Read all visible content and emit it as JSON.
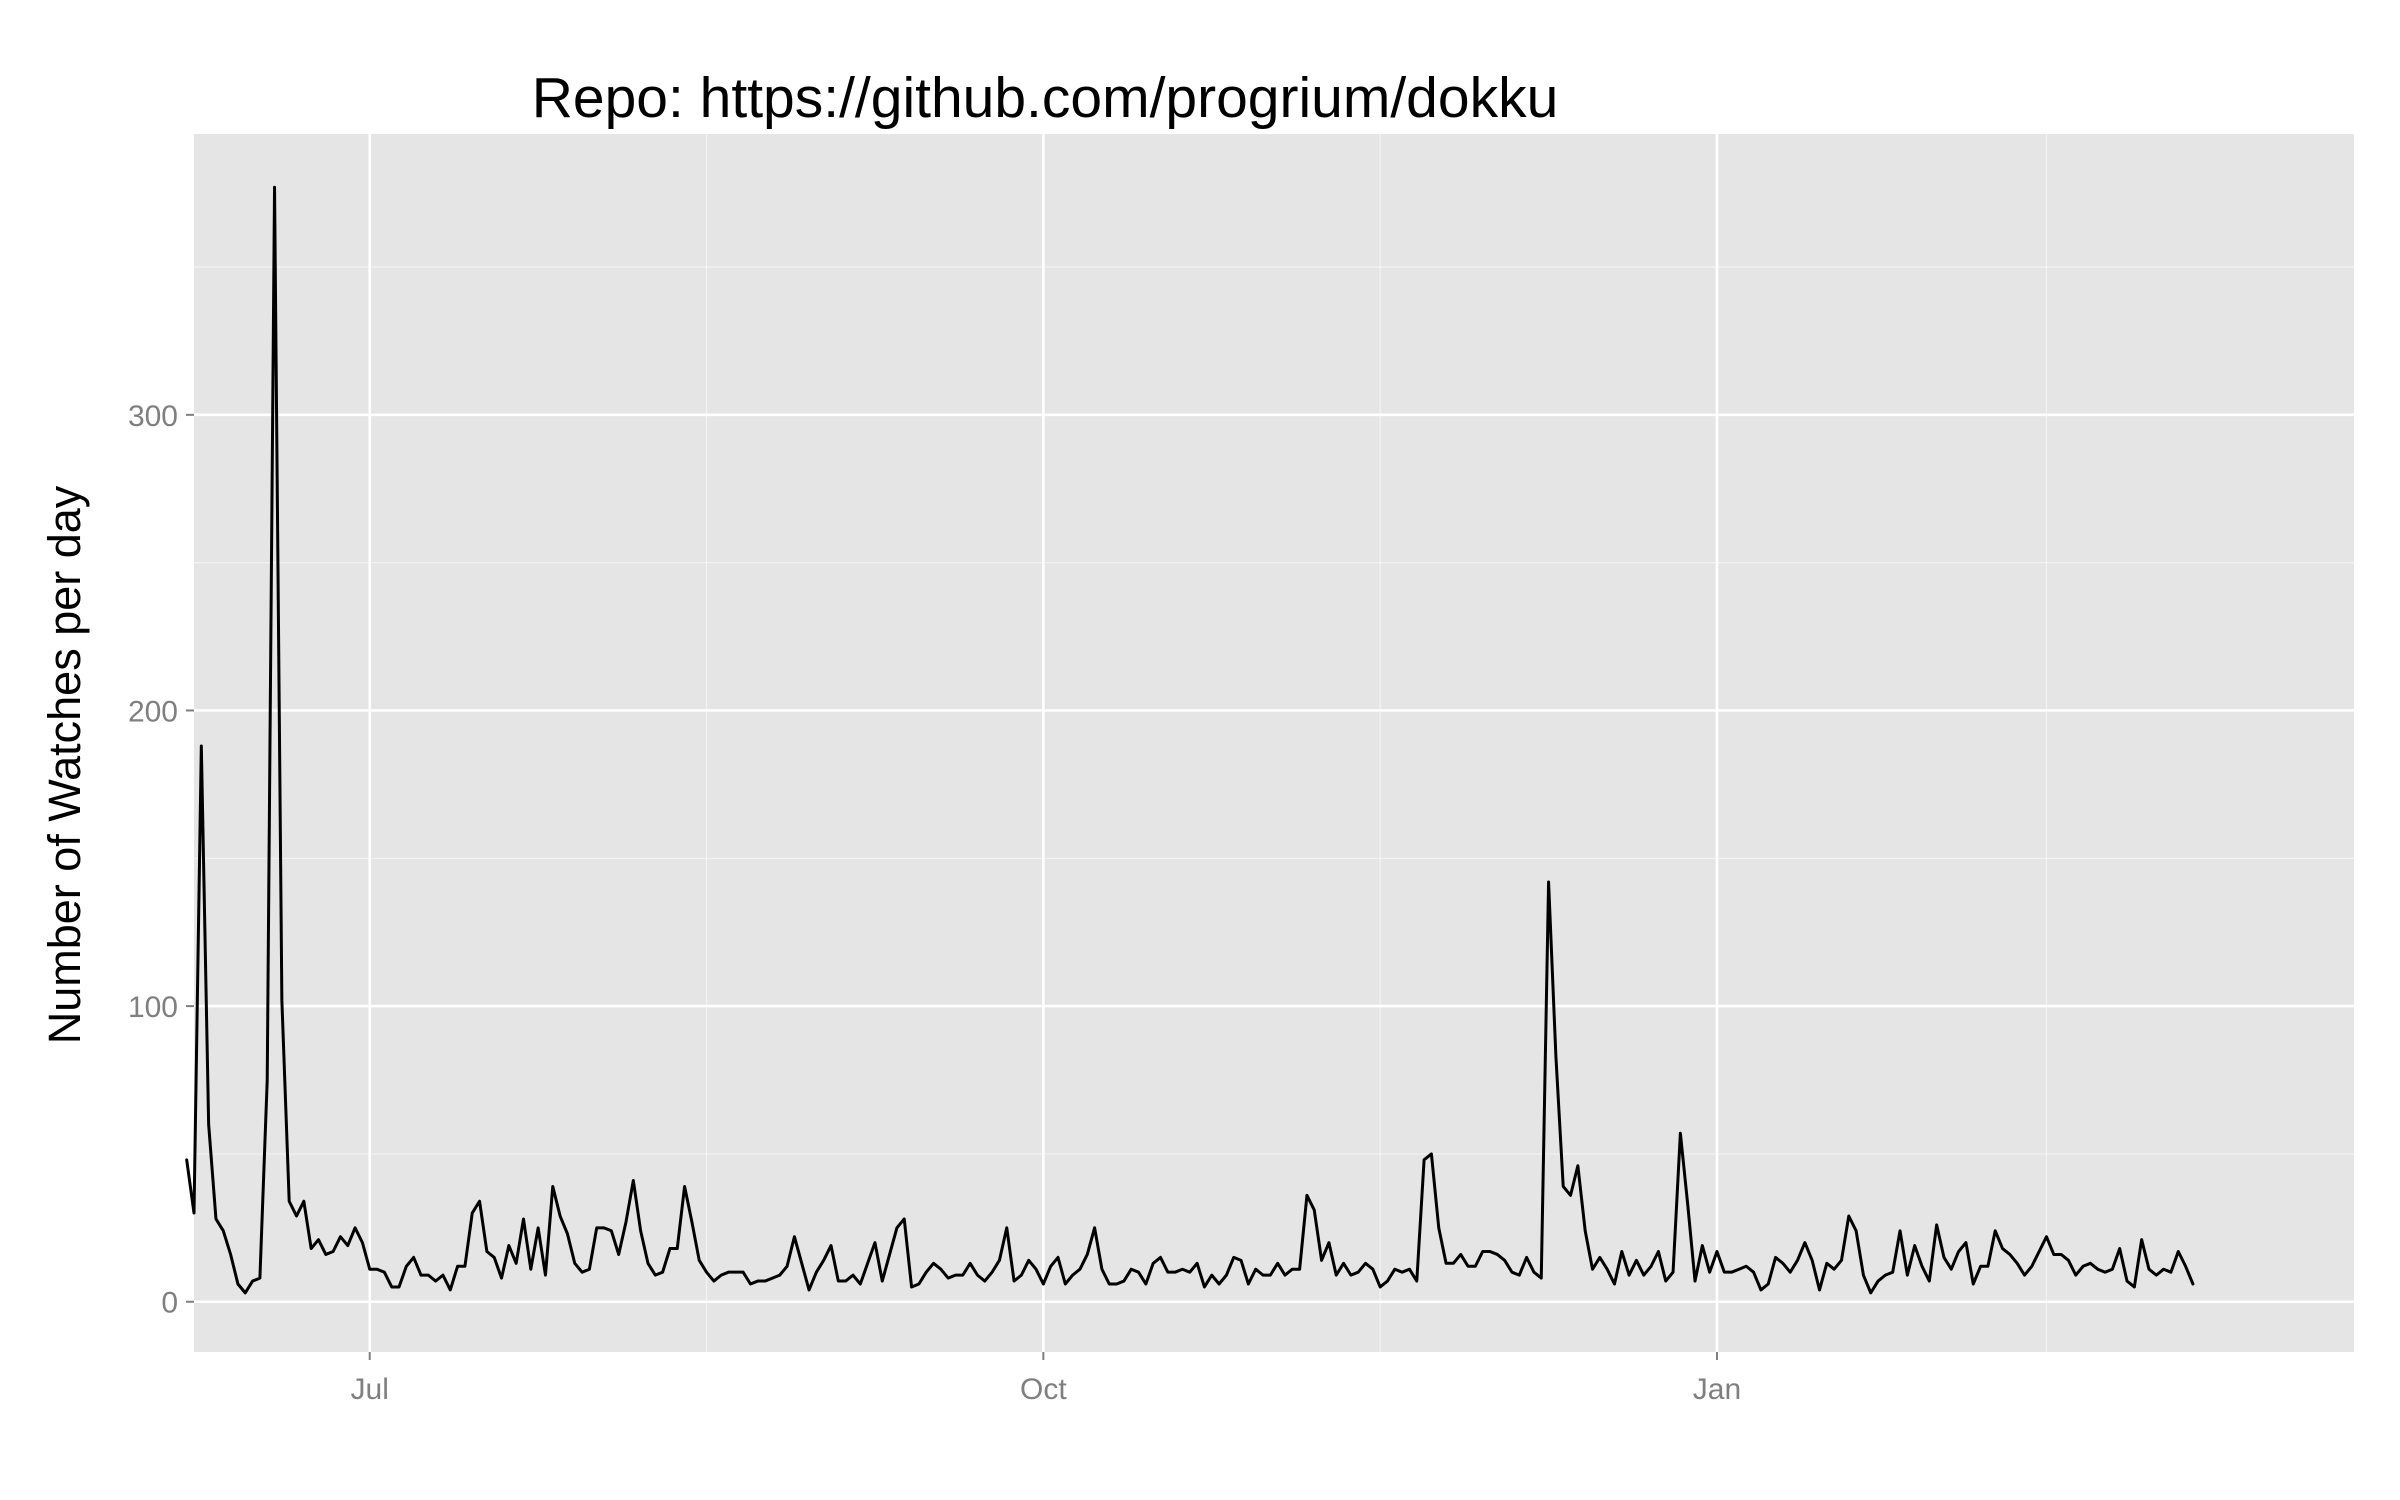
{
  "chart_data": {
    "type": "line",
    "title": "Repo: https://github.com/progrium/dokku",
    "xlabel": "",
    "ylabel": "Number of Watches per day",
    "xlim": [
      "2013-06-07",
      "2014-03-29"
    ],
    "ylim": [
      -17,
      395
    ],
    "x_major_ticks": [
      {
        "date": "2013-07-01",
        "label": "Jul"
      },
      {
        "date": "2013-10-01",
        "label": "Oct"
      },
      {
        "date": "2014-01-01",
        "label": "Jan"
      }
    ],
    "x_minor_ticks": [
      "2013-08-16",
      "2013-11-16",
      "2014-02-15"
    ],
    "y_major_ticks": [
      {
        "value": 0,
        "label": "0"
      },
      {
        "value": 100,
        "label": "100"
      },
      {
        "value": 200,
        "label": "200"
      },
      {
        "value": 300,
        "label": "300"
      }
    ],
    "y_minor_ticks": [
      50,
      150,
      250,
      350
    ],
    "grid": true,
    "background_color": "#e5e5e5",
    "grid_color": "#ffffff",
    "line_color": "#000000",
    "series": [
      {
        "start_date": "2013-06-06",
        "values": [
          48,
          30,
          188,
          60,
          28,
          24,
          16,
          6,
          3,
          7,
          8,
          75,
          377,
          102,
          34,
          29,
          34,
          18,
          21,
          16,
          17,
          22,
          19,
          25,
          20,
          11,
          11,
          10,
          5,
          5,
          12,
          15,
          9,
          9,
          7,
          9,
          4,
          12,
          12,
          30,
          34,
          17,
          15,
          8,
          19,
          13,
          28,
          11,
          25,
          9,
          39,
          29,
          23,
          13,
          10,
          11,
          25,
          25,
          24,
          16,
          27,
          41,
          24,
          13,
          9,
          10,
          18,
          18,
          39,
          27,
          14,
          10,
          7,
          9,
          10,
          10,
          10,
          6,
          7,
          7,
          8,
          9,
          12,
          22,
          13,
          4,
          10,
          14,
          19,
          7,
          7,
          9,
          6,
          13,
          20,
          7,
          16,
          25,
          28,
          5,
          6,
          10,
          13,
          11,
          8,
          9,
          9,
          13,
          9,
          7,
          10,
          14,
          25,
          7,
          9,
          14,
          11,
          6,
          12,
          15,
          6,
          9,
          11,
          16,
          25,
          11,
          6,
          6,
          7,
          11,
          10,
          6,
          13,
          15,
          10,
          10,
          11,
          10,
          13,
          5,
          9,
          6,
          9,
          15,
          14,
          6,
          11,
          9,
          9,
          13,
          9,
          11,
          11,
          36,
          31,
          14,
          20,
          9,
          13,
          9,
          10,
          13,
          11,
          5,
          7,
          11,
          10,
          11,
          7,
          48,
          50,
          25,
          13,
          13,
          16,
          12,
          12,
          17,
          17,
          16,
          14,
          10,
          9,
          15,
          10,
          8,
          142,
          83,
          39,
          36,
          46,
          24,
          11,
          15,
          11,
          6,
          17,
          9,
          14,
          9,
          12,
          17,
          7,
          10,
          57,
          33,
          7,
          19,
          10,
          17,
          10,
          10,
          11,
          12,
          10,
          4,
          6,
          15,
          13,
          10,
          14,
          20,
          14,
          4,
          13,
          11,
          14,
          29,
          24,
          9,
          3,
          7,
          9,
          10,
          24,
          9,
          19,
          12,
          7,
          26,
          15,
          11,
          17,
          20,
          6,
          12,
          12,
          24,
          18,
          16,
          13,
          9,
          12,
          17,
          22,
          16,
          16,
          14,
          9,
          12,
          13,
          11,
          10,
          11,
          18,
          7,
          5,
          21,
          11,
          9,
          11,
          10,
          17,
          12,
          6
        ]
      }
    ]
  }
}
